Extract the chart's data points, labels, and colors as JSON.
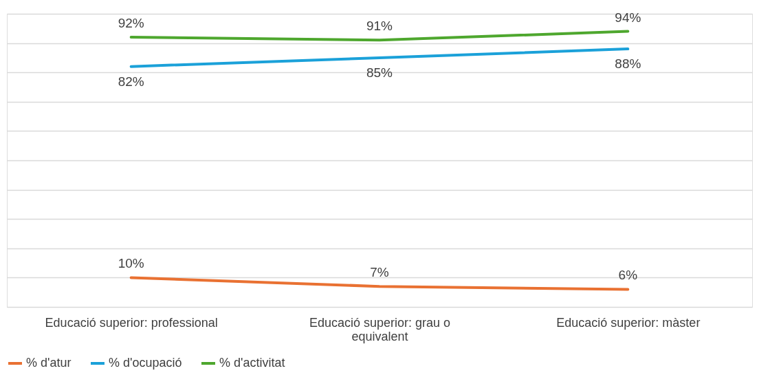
{
  "chart_data": {
    "type": "line",
    "categories": [
      "Educació superior: professional",
      "Educació superior: grau o equivalent",
      "Educació superior: màster"
    ],
    "series": [
      {
        "name": "% d'atur",
        "color": "#e97132",
        "values": [
          10,
          7,
          6
        ],
        "value_labels": [
          "10%",
          "7%",
          "6%"
        ]
      },
      {
        "name": "% d'ocupació",
        "color": "#1ba1d9",
        "values": [
          82,
          85,
          88
        ],
        "value_labels": [
          "82%",
          "85%",
          "88%"
        ]
      },
      {
        "name": "% d'activitat",
        "color": "#4ea72e",
        "values": [
          92,
          91,
          94
        ],
        "value_labels": [
          "92%",
          "91%",
          "94%"
        ]
      }
    ],
    "ylim": [
      0,
      100
    ],
    "yticks": [
      0,
      10,
      20,
      30,
      40,
      50,
      60,
      70,
      80,
      90,
      100
    ],
    "tick_labels": "x",
    "grid": "y",
    "legend": "bottom",
    "marker": "none",
    "line_style": "solid"
  }
}
